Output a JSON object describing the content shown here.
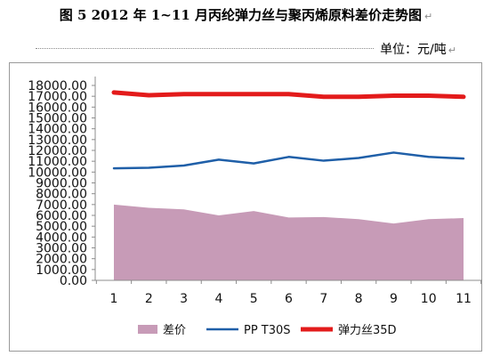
{
  "header": {
    "title": "图 5  2012 年 1~11 月丙纶弹力丝与聚丙烯原料差价走势图",
    "title_mark": "↵",
    "unit": "单位：元/吨",
    "unit_mark": "↵"
  },
  "chart_data": {
    "type": "area",
    "x": [
      1,
      2,
      3,
      4,
      5,
      6,
      7,
      8,
      9,
      10,
      11
    ],
    "ylim": [
      0,
      18000
    ],
    "ytick_step": 1000,
    "ytick_format": "0.00",
    "xlabel": "",
    "ylabel": "",
    "grid": false,
    "legend_position": "bottom",
    "series": [
      {
        "name": "差价",
        "type": "area",
        "color": "#C79BB7",
        "values": [
          7000,
          6700,
          6550,
          6000,
          6400,
          5800,
          5850,
          5650,
          5250,
          5650,
          5750
        ]
      },
      {
        "name": "PP T30S",
        "type": "line",
        "color": "#1F5FA8",
        "values": [
          10350,
          10400,
          10600,
          11150,
          10800,
          11400,
          11050,
          11300,
          11800,
          11400,
          11250
        ]
      },
      {
        "name": "弹力丝35D",
        "type": "line",
        "color": "#E31B1B",
        "values": [
          17350,
          17100,
          17200,
          17200,
          17200,
          17200,
          16950,
          16950,
          17050,
          17050,
          16950
        ]
      }
    ]
  }
}
